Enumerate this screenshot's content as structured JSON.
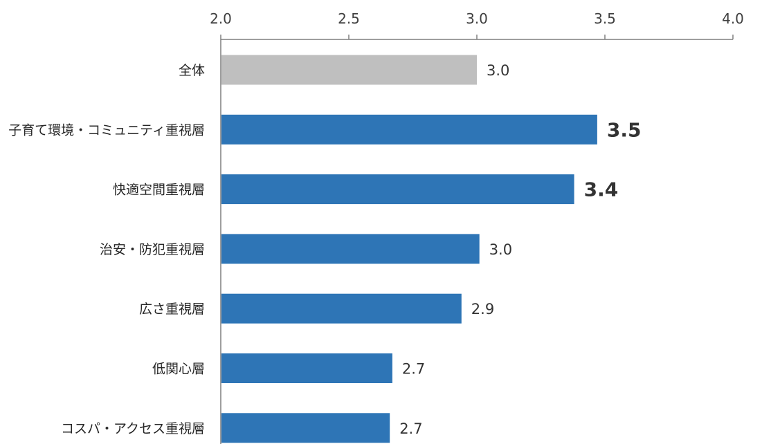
{
  "chart_data": {
    "type": "bar",
    "orientation": "horizontal",
    "categories": [
      "全体",
      "子育て環境・コミュニティ重視層",
      "快適空間重視層",
      "治安・防犯重視層",
      "広さ重視層",
      "低関心層",
      "コスパ・アクセス重視層"
    ],
    "values": [
      3.0,
      3.47,
      3.38,
      3.01,
      2.94,
      2.67,
      2.66
    ],
    "data_labels": [
      "3.0",
      "3.5",
      "3.4",
      "3.0",
      "2.9",
      "2.7",
      "2.7"
    ],
    "emphasized_labels": [
      false,
      true,
      true,
      false,
      false,
      false,
      false
    ],
    "bar_colors": [
      "#bfbfbf",
      "#2e75b6",
      "#2e75b6",
      "#2e75b6",
      "#2e75b6",
      "#2e75b6",
      "#2e75b6"
    ],
    "xlim": [
      2.0,
      4.0
    ],
    "x_ticks": [
      2.0,
      2.5,
      3.0,
      3.5,
      4.0
    ],
    "x_tick_labels": [
      "2.0",
      "2.5",
      "3.0",
      "3.5",
      "4.0"
    ],
    "axis_position": "top",
    "grid": false,
    "legend": "none"
  }
}
